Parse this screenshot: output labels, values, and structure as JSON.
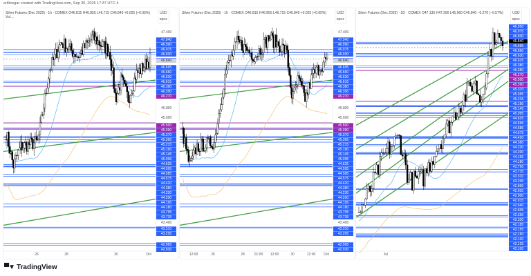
{
  "credit": "erlibregar created with TradingView.com, Sep 30, 2025 17:37 UTC-4",
  "brand": "TradingView",
  "colors": {
    "level": "#2962ff",
    "magenta": "#9c27b0",
    "trend": "#43a047",
    "ma_fast": "#5ab4f0",
    "ma_slow": "#f5c27a",
    "up": "#ffffff",
    "down": "#000000"
  },
  "panes": [
    {
      "header": "Silver Futures (Dec 2025) · 1h · COMEX  O46.815  H46.855  L46.715  C46.840  +0.025 (+0.05%)  Vol…",
      "currency": "USD",
      "unit": "вроz",
      "ticks": [
        {
          "text": "47.400",
          "p": 47.4
        },
        {
          "text": "45.800",
          "p": 45.8
        },
        {
          "text": "45.600",
          "p": 45.6
        },
        {
          "text": "43.400",
          "p": 43.4
        }
      ],
      "labels": [
        {
          "group": [
            {
              "v": "47.040"
            },
            {
              "v": "46.990"
            },
            {
              "v": "46.975"
            },
            {
              "v": "46.930"
            }
          ]
        },
        {
          "group": [
            {
              "v": "46.840",
              "kind": "gray"
            }
          ]
        },
        {
          "group": [
            {
              "v": "46.695"
            },
            {
              "v": "46.660"
            },
            {
              "v": "46.630"
            },
            {
              "v": "46.615"
            },
            {
              "v": "46.380"
            },
            {
              "v": "46.350"
            },
            {
              "v": "46.270",
              "kind": "purple"
            }
          ]
        },
        {
          "group": [
            {
              "v": "45.500",
              "kind": "purple"
            },
            {
              "v": "45.390",
              "kind": "purple"
            },
            {
              "v": "45.370"
            },
            {
              "v": "45.365"
            },
            {
              "v": "45.215"
            },
            {
              "v": "45.190"
            },
            {
              "v": "45.145"
            },
            {
              "v": "45.095"
            }
          ]
        },
        {
          "group": [
            {
              "v": "44.625"
            },
            {
              "v": "44.595"
            },
            {
              "v": "44.585"
            },
            {
              "v": "44.575"
            },
            {
              "v": "44.420"
            },
            {
              "v": "44.380"
            },
            {
              "v": "44.230"
            },
            {
              "v": "44.200"
            },
            {
              "v": "44.195"
            },
            {
              "v": "44.180"
            },
            {
              "v": "43.795"
            },
            {
              "v": "43.735"
            }
          ]
        },
        {
          "group": [
            {
              "v": "43.310"
            },
            {
              "v": "43.295"
            }
          ]
        },
        {
          "group": [
            {
              "v": "42.965"
            },
            {
              "v": "42.930"
            }
          ]
        }
      ],
      "time": [
        "26",
        "28",
        "30",
        "Oct"
      ]
    },
    {
      "header": "Silver Futures (Dec 2025) · 1h · COMEX  O46.815  H46.855  L46.715  C46.840  +0.025 (+0.05%)",
      "currency": "USD",
      "unit": "вроz",
      "ticks": [
        {
          "text": "47.400",
          "p": 47.4
        },
        {
          "text": "45.800",
          "p": 45.8
        },
        {
          "text": "45.600",
          "p": 45.6
        },
        {
          "text": "43.400",
          "p": 43.4
        }
      ],
      "labels": "same",
      "time": [
        "12:00",
        "26",
        "28",
        "01:00",
        "12:00",
        "30",
        "12:00",
        "Oct"
      ]
    },
    {
      "header": "Silver Futures (Dec 2025) · 1D · COMEX  O47.135  H47.390  L45.960  C46.840  −0.270 (−0.57%)",
      "currency": "USD",
      "unit": "вроz",
      "ticks": [],
      "labels": [
        {
          "group": [
            {
              "v": "46.950"
            },
            {
              "v": "46.975"
            },
            {
              "v": "46.930"
            },
            {
              "v": "46.840",
              "kind": "black"
            },
            {
              "v": "46.695"
            },
            {
              "v": "46.660"
            },
            {
              "v": "46.630"
            },
            {
              "v": "46.615"
            },
            {
              "v": "46.380"
            },
            {
              "v": "46.350"
            },
            {
              "v": "46.270",
              "kind": "purple"
            },
            {
              "v": "45.500",
              "kind": "purple"
            },
            {
              "v": "45.390",
              "kind": "purple"
            },
            {
              "v": "45.370"
            },
            {
              "v": "45.365"
            },
            {
              "v": "45.215"
            },
            {
              "v": "45.190"
            },
            {
              "v": "45.145"
            },
            {
              "v": "45.095"
            },
            {
              "v": "44.625"
            },
            {
              "v": "44.595"
            },
            {
              "v": "44.585"
            },
            {
              "v": "44.575"
            },
            {
              "v": "44.420"
            },
            {
              "v": "44.380"
            },
            {
              "v": "44.230"
            },
            {
              "v": "44.200"
            },
            {
              "v": "44.195"
            },
            {
              "v": "44.180"
            },
            {
              "v": "43.795"
            },
            {
              "v": "43.735"
            },
            {
              "v": "43.310"
            },
            {
              "v": "43.295"
            },
            {
              "v": "42.965"
            },
            {
              "v": "42.930"
            },
            {
              "v": "42.900"
            },
            {
              "v": "42.915"
            },
            {
              "v": "42.640"
            },
            {
              "v": "42.605"
            },
            {
              "v": "42.355"
            },
            {
              "v": "42.330"
            },
            {
              "v": "42.185"
            },
            {
              "v": "42.155"
            },
            {
              "v": "42.150"
            },
            {
              "v": "42.130"
            },
            {
              "v": "42.125"
            },
            {
              "v": "42.100"
            }
          ]
        }
      ],
      "time": [
        "Jul"
      ]
    }
  ]
}
